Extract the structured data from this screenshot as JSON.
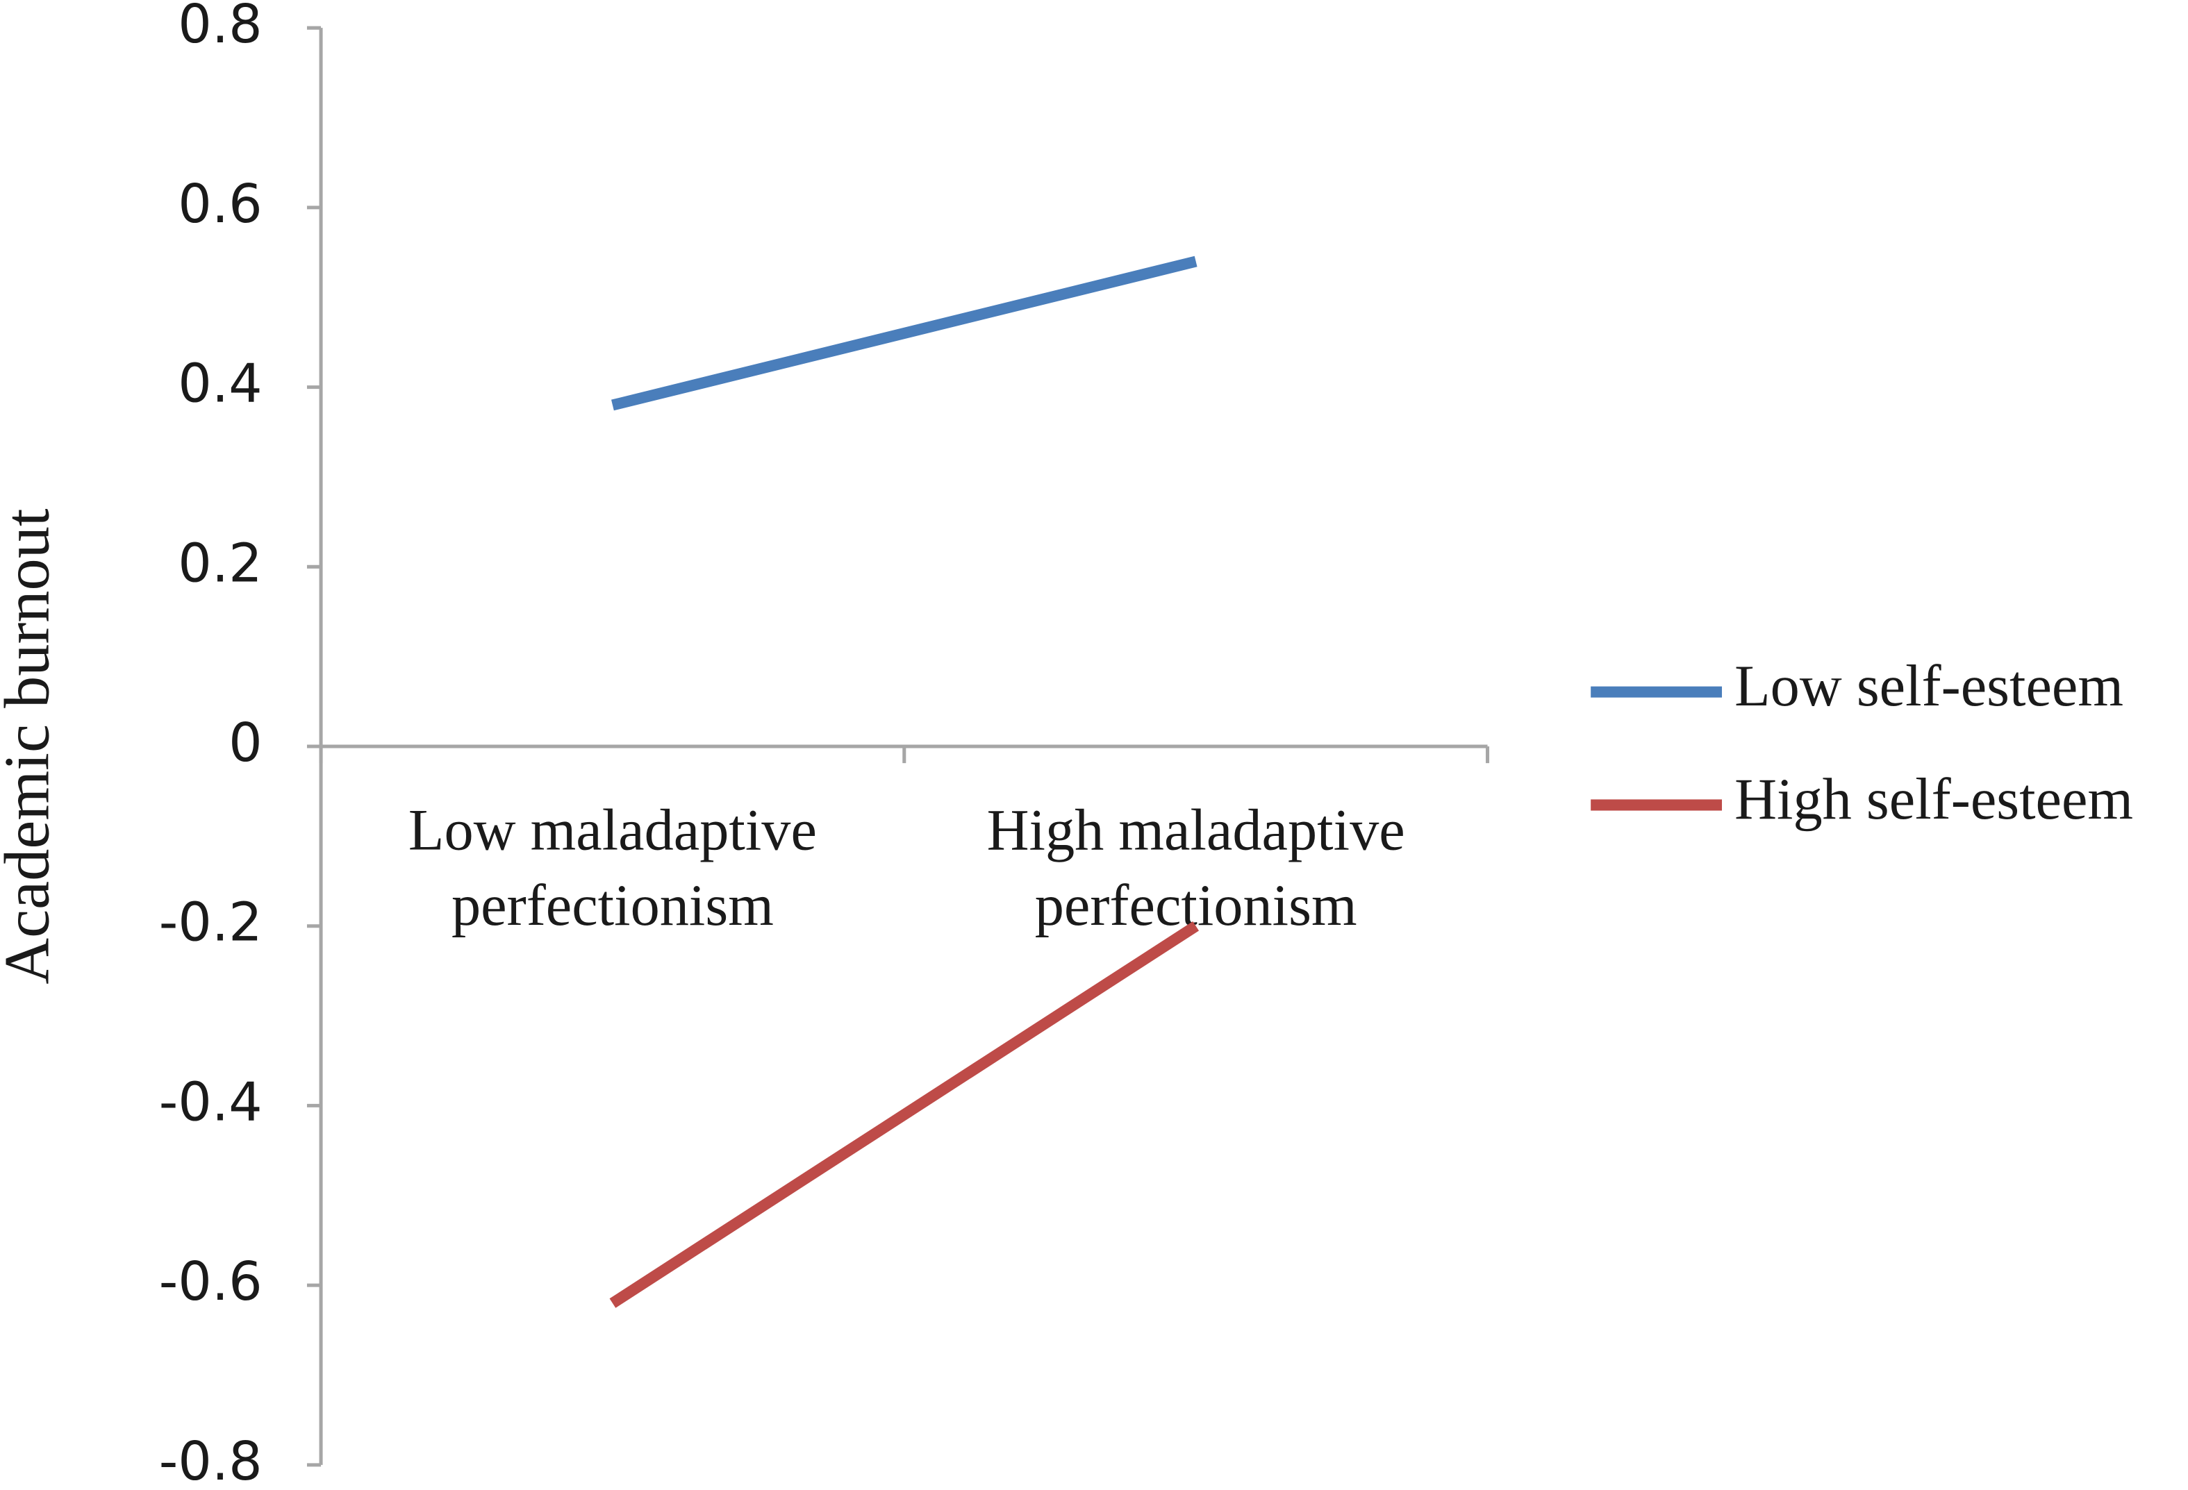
{
  "chart_data": {
    "type": "line",
    "y_label": "Academic burnout",
    "categories": [
      [
        "Low maladaptive",
        "perfectionism"
      ],
      [
        "High maladaptive",
        "perfectionism"
      ]
    ],
    "series": [
      {
        "name": "Low self-esteem",
        "color": "#4a7ebb",
        "values": [
          0.38,
          0.54
        ]
      },
      {
        "name": "High self-esteem",
        "color": "#be4b48",
        "values": [
          -0.62,
          -0.2
        ]
      }
    ],
    "ylim": [
      -0.8,
      0.8
    ],
    "yticks": [
      -0.8,
      -0.6,
      -0.4,
      -0.2,
      0,
      0.2,
      0.4,
      0.6,
      0.8
    ],
    "legend": "right"
  }
}
